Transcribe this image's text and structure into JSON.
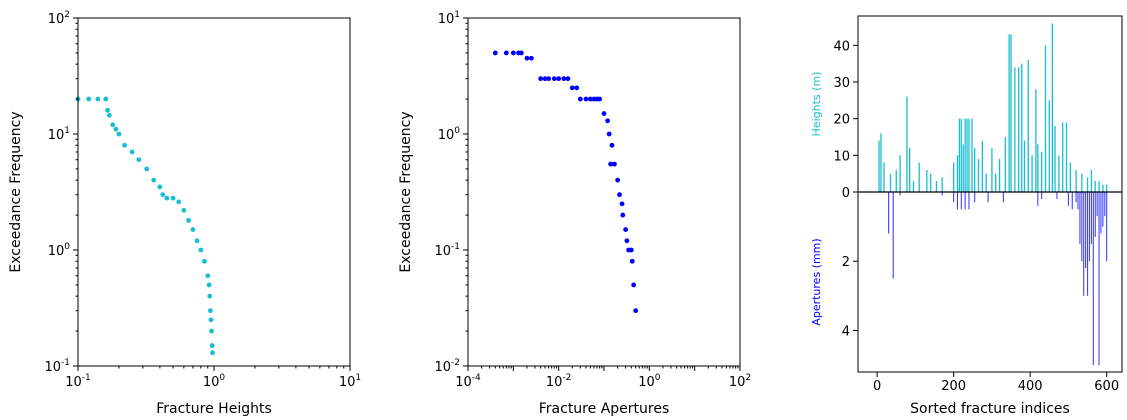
{
  "colors": {
    "heights": "#17becf",
    "apertures": "#0000ff",
    "axis": "#000000"
  },
  "chart_data": [
    {
      "type": "scatter",
      "xscale": "log",
      "yscale": "log",
      "xlim": [
        0.1,
        10
      ],
      "ylim": [
        0.1,
        100
      ],
      "x_ticks": [
        "10^-1",
        "10^0",
        "10^1"
      ],
      "y_ticks": [
        "10^-1",
        "10^0",
        "10^1",
        "10^2"
      ],
      "xlabel": "Fracture Heights",
      "ylabel": "Exceedance Frequency",
      "color": "#17becf",
      "points": [
        [
          0.1,
          20
        ],
        [
          0.12,
          20
        ],
        [
          0.14,
          20
        ],
        [
          0.16,
          20
        ],
        [
          0.165,
          16
        ],
        [
          0.17,
          14.5
        ],
        [
          0.18,
          12
        ],
        [
          0.19,
          11
        ],
        [
          0.2,
          10
        ],
        [
          0.22,
          8
        ],
        [
          0.25,
          7
        ],
        [
          0.28,
          6
        ],
        [
          0.32,
          5
        ],
        [
          0.36,
          4
        ],
        [
          0.4,
          3.5
        ],
        [
          0.42,
          3
        ],
        [
          0.45,
          2.8
        ],
        [
          0.5,
          2.8
        ],
        [
          0.55,
          2.6
        ],
        [
          0.6,
          2.2
        ],
        [
          0.65,
          1.8
        ],
        [
          0.7,
          1.5
        ],
        [
          0.75,
          1.2
        ],
        [
          0.8,
          1.0
        ],
        [
          0.85,
          0.8
        ],
        [
          0.9,
          0.6
        ],
        [
          0.92,
          0.5
        ],
        [
          0.93,
          0.4
        ],
        [
          0.94,
          0.3
        ],
        [
          0.95,
          0.25
        ],
        [
          0.96,
          0.2
        ],
        [
          0.97,
          0.15
        ],
        [
          0.975,
          0.13
        ]
      ]
    },
    {
      "type": "scatter",
      "xscale": "log",
      "yscale": "log",
      "xlim": [
        0.0001,
        100
      ],
      "ylim": [
        0.01,
        10
      ],
      "x_ticks": [
        "10^-4",
        "10^-2",
        "10^0",
        "10^2"
      ],
      "y_ticks": [
        "10^-2",
        "10^-1",
        "10^0",
        "10^1"
      ],
      "xlabel": "Fracture Apertures",
      "ylabel": "Exceedance Frequency",
      "color": "#0000ff",
      "points": [
        [
          0.0004,
          5
        ],
        [
          0.0007,
          5
        ],
        [
          0.001,
          5
        ],
        [
          0.0013,
          5
        ],
        [
          0.0015,
          5
        ],
        [
          0.002,
          4.5
        ],
        [
          0.0025,
          4.5
        ],
        [
          0.004,
          3
        ],
        [
          0.005,
          3
        ],
        [
          0.006,
          3
        ],
        [
          0.008,
          3
        ],
        [
          0.01,
          3
        ],
        [
          0.013,
          3
        ],
        [
          0.016,
          3
        ],
        [
          0.02,
          2.5
        ],
        [
          0.025,
          2.5
        ],
        [
          0.03,
          2
        ],
        [
          0.04,
          2
        ],
        [
          0.05,
          2
        ],
        [
          0.06,
          2
        ],
        [
          0.07,
          2
        ],
        [
          0.08,
          2
        ],
        [
          0.1,
          1.5
        ],
        [
          0.12,
          1.3
        ],
        [
          0.13,
          1.0
        ],
        [
          0.15,
          0.8
        ],
        [
          0.14,
          0.55
        ],
        [
          0.17,
          0.55
        ],
        [
          0.2,
          0.4
        ],
        [
          0.22,
          0.3
        ],
        [
          0.25,
          0.25
        ],
        [
          0.26,
          0.2
        ],
        [
          0.3,
          0.15
        ],
        [
          0.32,
          0.12
        ],
        [
          0.35,
          0.1
        ],
        [
          0.4,
          0.1
        ],
        [
          0.42,
          0.08
        ],
        [
          0.45,
          0.05
        ],
        [
          0.5,
          0.03
        ]
      ]
    },
    {
      "type": "bar",
      "xlim": [
        -50,
        640
      ],
      "x_ticks": [
        0,
        200,
        400,
        600
      ],
      "xlabel": "Sorted fracture indices",
      "ylabel_top": "Heights (m)",
      "ylabel_bottom": "Apertures (mm)",
      "heights_ylim": [
        0,
        48
      ],
      "heights_ticks": [
        0,
        10,
        20,
        30,
        40
      ],
      "apertures_ylim": [
        0,
        5.2
      ],
      "apertures_ticks": [
        2,
        4
      ],
      "heights": [
        [
          5,
          14
        ],
        [
          10,
          16
        ],
        [
          18,
          8
        ],
        [
          35,
          5
        ],
        [
          50,
          6
        ],
        [
          60,
          10
        ],
        [
          78,
          26
        ],
        [
          85,
          12
        ],
        [
          95,
          3
        ],
        [
          110,
          8
        ],
        [
          130,
          6
        ],
        [
          140,
          5
        ],
        [
          155,
          3
        ],
        [
          170,
          4
        ],
        [
          200,
          8
        ],
        [
          210,
          10
        ],
        [
          215,
          20
        ],
        [
          220,
          20
        ],
        [
          225,
          13
        ],
        [
          230,
          20
        ],
        [
          235,
          20
        ],
        [
          240,
          20
        ],
        [
          248,
          20
        ],
        [
          255,
          12
        ],
        [
          265,
          9
        ],
        [
          275,
          14
        ],
        [
          285,
          5
        ],
        [
          300,
          12
        ],
        [
          310,
          5
        ],
        [
          320,
          9
        ],
        [
          335,
          15
        ],
        [
          345,
          43
        ],
        [
          350,
          43
        ],
        [
          360,
          34
        ],
        [
          370,
          34
        ],
        [
          378,
          35
        ],
        [
          385,
          14
        ],
        [
          395,
          36
        ],
        [
          405,
          10
        ],
        [
          415,
          28
        ],
        [
          420,
          13
        ],
        [
          430,
          11
        ],
        [
          440,
          40
        ],
        [
          450,
          25
        ],
        [
          458,
          46
        ],
        [
          465,
          18
        ],
        [
          475,
          10
        ],
        [
          485,
          19
        ],
        [
          495,
          19
        ],
        [
          505,
          8
        ],
        [
          520,
          6
        ],
        [
          535,
          5
        ],
        [
          550,
          4
        ],
        [
          560,
          6
        ],
        [
          570,
          3
        ],
        [
          580,
          3
        ],
        [
          590,
          2
        ],
        [
          600,
          2
        ]
      ],
      "apertures": [
        [
          30,
          1.2
        ],
        [
          42,
          2.5
        ],
        [
          60,
          0.1
        ],
        [
          170,
          0.1
        ],
        [
          200,
          0.3
        ],
        [
          210,
          0.5
        ],
        [
          220,
          0.5
        ],
        [
          230,
          0.5
        ],
        [
          240,
          0.5
        ],
        [
          255,
          0.3
        ],
        [
          290,
          0.3
        ],
        [
          330,
          0.3
        ],
        [
          420,
          0.4
        ],
        [
          430,
          0.2
        ],
        [
          470,
          0.2
        ],
        [
          500,
          0.4
        ],
        [
          510,
          0.5
        ],
        [
          520,
          0.3
        ],
        [
          525,
          0.5
        ],
        [
          530,
          1.5
        ],
        [
          535,
          2
        ],
        [
          540,
          3
        ],
        [
          545,
          2.2
        ],
        [
          550,
          3
        ],
        [
          555,
          2
        ],
        [
          560,
          1.5
        ],
        [
          565,
          5
        ],
        [
          570,
          1.3
        ],
        [
          575,
          0.7
        ],
        [
          580,
          5
        ],
        [
          585,
          1.2
        ],
        [
          590,
          1
        ],
        [
          595,
          0.7
        ],
        [
          600,
          2
        ]
      ]
    }
  ]
}
